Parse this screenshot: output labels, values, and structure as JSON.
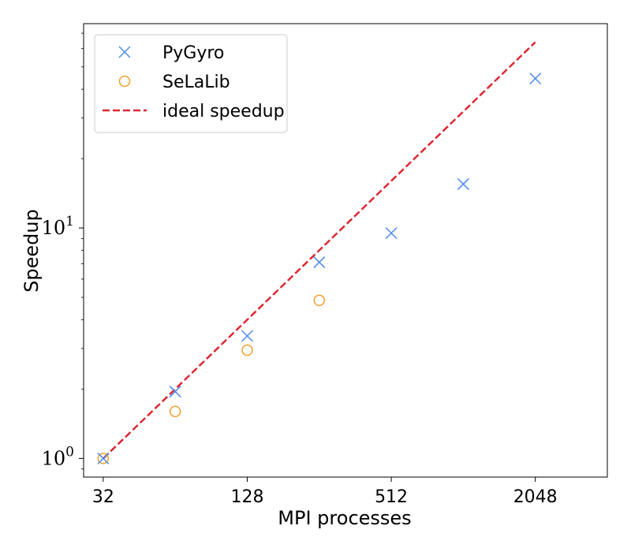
{
  "chart_data": {
    "type": "scatter",
    "xlabel": "MPI processes",
    "ylabel": "Speedup",
    "xscale": "log2",
    "yscale": "log10",
    "xlim": [
      26.5,
      4096
    ],
    "ylim": [
      0.83,
      77
    ],
    "x_ticks": [
      32,
      128,
      512,
      2048
    ],
    "x_tick_labels": [
      "32",
      "128",
      "512",
      "2048"
    ],
    "y_ticks": [
      1,
      10
    ],
    "y_tick_labels": [
      {
        "base": "10",
        "exp": "0"
      },
      {
        "base": "10",
        "exp": "1"
      }
    ],
    "legend_position": "top-left",
    "series": [
      {
        "name": "PyGyro",
        "marker": "x",
        "color": "#4C8BE8",
        "x": [
          32,
          64,
          128,
          256,
          512,
          1024,
          2048
        ],
        "y": [
          1.0,
          1.95,
          3.4,
          7.1,
          9.5,
          15.5,
          44.5
        ]
      },
      {
        "name": "SeLaLib",
        "marker": "circle",
        "color": "#F0A030",
        "x": [
          32,
          64,
          128,
          256
        ],
        "y": [
          1.0,
          1.6,
          2.95,
          4.85
        ]
      },
      {
        "name": "ideal speedup",
        "marker": "dashed-line",
        "color": "#DC2832",
        "x": [
          32,
          2048
        ],
        "y": [
          1,
          64
        ]
      }
    ]
  }
}
